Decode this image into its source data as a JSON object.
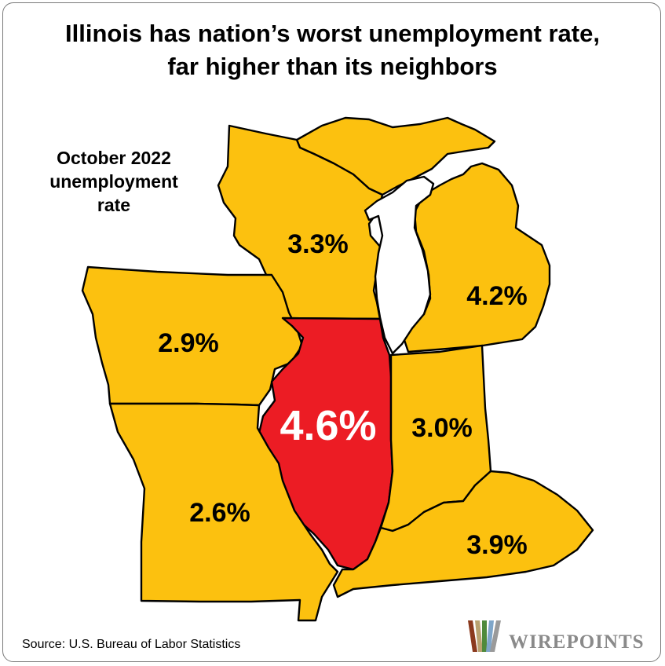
{
  "title": {
    "line1": "Illinois has nation’s worst unemployment rate,",
    "line2": "far higher than its neighbors"
  },
  "subtitle": {
    "line1": "October 2022",
    "line2": "unemployment",
    "line3": "rate"
  },
  "states": [
    {
      "key": "wisconsin",
      "value": "3.3%"
    },
    {
      "key": "michigan",
      "value": "4.2%"
    },
    {
      "key": "iowa",
      "value": "2.9%"
    },
    {
      "key": "illinois",
      "value": "4.6%"
    },
    {
      "key": "indiana",
      "value": "3.0%"
    },
    {
      "key": "missouri",
      "value": "2.6%"
    },
    {
      "key": "kentucky",
      "value": "3.9%"
    }
  ],
  "colors": {
    "neighbor_fill": "#fcc10f",
    "highlight_fill": "#ec1c24",
    "lake_fill": "#ffffff",
    "logo_stripes": [
      "#8b3a1e",
      "#b9a270",
      "#4f8a3c",
      "#7fa6c9",
      "#9a9a9a"
    ]
  },
  "source": "Source: U.S. Bureau of Labor Statistics",
  "logo": {
    "text": "WIREPOINTS",
    "icon": "wirepoints-logo-icon"
  }
}
